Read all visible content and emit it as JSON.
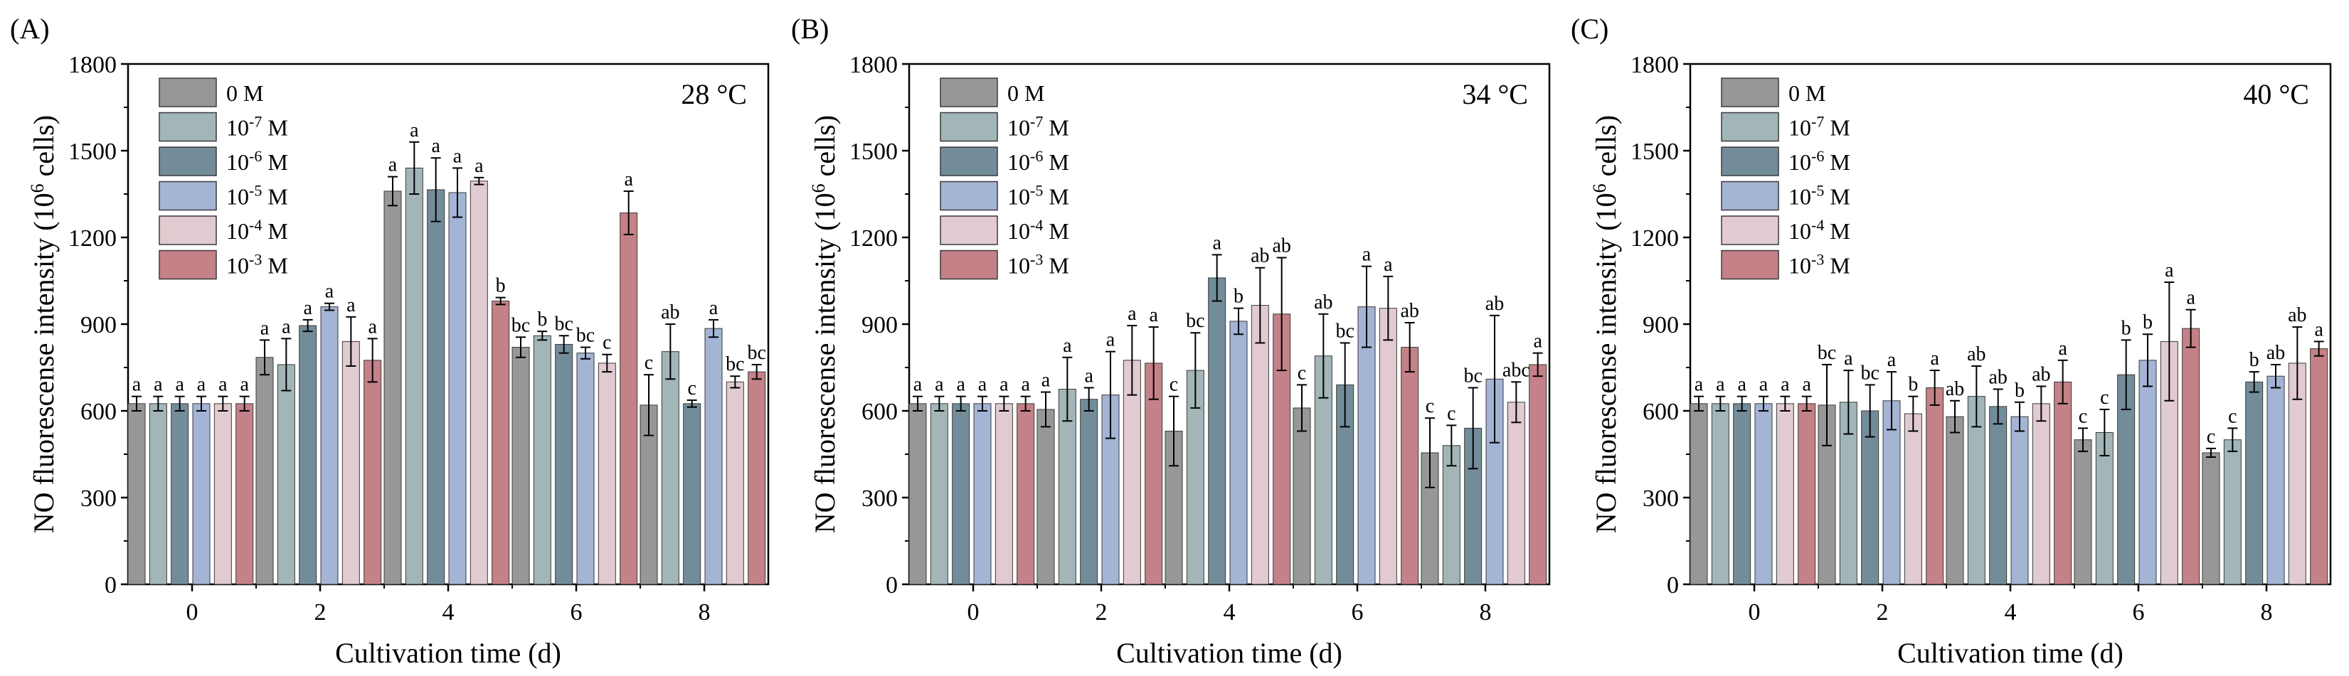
{
  "chart_data": [
    {
      "type": "bar",
      "panel_label": "(A)",
      "annotation": "28 °C",
      "xlabel": "Cultivation time (d)",
      "ylabel_main": "NO fluorescense intensity (10",
      "ylabel_sup": "6",
      "ylabel_tail": " cells)",
      "ylim": [
        0,
        1800
      ],
      "yticks": [
        "0",
        "300",
        "600",
        "900",
        "1200",
        "1500",
        "1800"
      ],
      "categories": [
        "0",
        "2",
        "4",
        "6",
        "8"
      ],
      "legend_position": "top-left",
      "series": [
        {
          "base": "0 M",
          "exp": "",
          "unit": "",
          "color": "#979797",
          "values": [
            625,
            785,
            1360,
            820,
            620
          ],
          "errors": [
            25,
            60,
            50,
            35,
            105
          ],
          "letters": [
            "a",
            "a",
            "a",
            "bc",
            "c"
          ]
        },
        {
          "base": "10",
          "exp": "-7",
          "unit": " M",
          "color": "#a2b6b8",
          "values": [
            625,
            760,
            1440,
            860,
            805
          ],
          "errors": [
            25,
            90,
            90,
            15,
            95
          ],
          "letters": [
            "a",
            "a",
            "a",
            "b",
            "ab"
          ]
        },
        {
          "base": "10",
          "exp": "-6",
          "unit": " M",
          "color": "#738c9a",
          "values": [
            625,
            895,
            1365,
            830,
            625
          ],
          "errors": [
            25,
            20,
            110,
            30,
            12
          ],
          "letters": [
            "a",
            "a",
            "a",
            "bc",
            "c"
          ]
        },
        {
          "base": "10",
          "exp": "-5",
          "unit": " M",
          "color": "#a4b4d5",
          "values": [
            625,
            960,
            1355,
            800,
            885
          ],
          "errors": [
            25,
            12,
            85,
            20,
            30
          ],
          "letters": [
            "a",
            "a",
            "a",
            "bc",
            "a"
          ]
        },
        {
          "base": "10",
          "exp": "-4",
          "unit": " M",
          "color": "#e2cbd0",
          "values": [
            625,
            840,
            1395,
            765,
            700
          ],
          "errors": [
            25,
            85,
            12,
            30,
            20
          ],
          "letters": [
            "a",
            "a",
            "a",
            "c",
            "bc"
          ]
        },
        {
          "base": "10",
          "exp": "-3",
          "unit": " M",
          "color": "#c48187",
          "values": [
            625,
            775,
            980,
            1285,
            735
          ],
          "errors": [
            25,
            75,
            12,
            75,
            25
          ],
          "letters": [
            "a",
            "a",
            "b",
            "a",
            "bc"
          ]
        }
      ]
    },
    {
      "type": "bar",
      "panel_label": "(B)",
      "annotation": "34 °C",
      "xlabel": "Cultivation time (d)",
      "ylabel_main": "NO fluorescense intensity (10",
      "ylabel_sup": "6",
      "ylabel_tail": " cells)",
      "ylim": [
        0,
        1800
      ],
      "yticks": [
        "0",
        "300",
        "600",
        "900",
        "1200",
        "1500",
        "1800"
      ],
      "categories": [
        "0",
        "2",
        "4",
        "6",
        "8"
      ],
      "legend_position": "top-left",
      "series": [
        {
          "base": "0 M",
          "exp": "",
          "unit": "",
          "color": "#979797",
          "values": [
            625,
            605,
            530,
            610,
            455
          ],
          "errors": [
            25,
            60,
            120,
            80,
            120
          ],
          "letters": [
            "a",
            "a",
            "c",
            "c",
            "c"
          ]
        },
        {
          "base": "10",
          "exp": "-7",
          "unit": " M",
          "color": "#a2b6b8",
          "values": [
            625,
            675,
            740,
            790,
            480
          ],
          "errors": [
            25,
            110,
            130,
            145,
            70
          ],
          "letters": [
            "a",
            "a",
            "bc",
            "ab",
            "c"
          ]
        },
        {
          "base": "10",
          "exp": "-6",
          "unit": " M",
          "color": "#738c9a",
          "values": [
            625,
            640,
            1060,
            690,
            540
          ],
          "errors": [
            25,
            40,
            80,
            145,
            140
          ],
          "letters": [
            "a",
            "a",
            "a",
            "bc",
            "bc"
          ]
        },
        {
          "base": "10",
          "exp": "-5",
          "unit": " M",
          "color": "#a4b4d5",
          "values": [
            625,
            655,
            910,
            960,
            710
          ],
          "errors": [
            25,
            150,
            45,
            140,
            220
          ],
          "letters": [
            "a",
            "a",
            "b",
            "a",
            "ab"
          ]
        },
        {
          "base": "10",
          "exp": "-4",
          "unit": " M",
          "color": "#e2cbd0",
          "values": [
            625,
            775,
            965,
            955,
            630
          ],
          "errors": [
            25,
            120,
            130,
            110,
            70
          ],
          "letters": [
            "a",
            "a",
            "ab",
            "a",
            "abc"
          ]
        },
        {
          "base": "10",
          "exp": "-3",
          "unit": " M",
          "color": "#c48187",
          "values": [
            625,
            765,
            935,
            820,
            760
          ],
          "errors": [
            25,
            125,
            195,
            85,
            40
          ],
          "letters": [
            "a",
            "a",
            "ab",
            "ab",
            "a"
          ]
        }
      ]
    },
    {
      "type": "bar",
      "panel_label": "(C)",
      "annotation": "40 °C",
      "xlabel": "Cultivation time (d)",
      "ylabel_main": "NO fluorescense intensity (10",
      "ylabel_sup": "6",
      "ylabel_tail": " cells)",
      "ylim": [
        0,
        1800
      ],
      "yticks": [
        "0",
        "300",
        "600",
        "900",
        "1200",
        "1500",
        "1800"
      ],
      "categories": [
        "0",
        "2",
        "4",
        "6",
        "8"
      ],
      "legend_position": "top-left",
      "series": [
        {
          "base": "0 M",
          "exp": "",
          "unit": "",
          "color": "#979797",
          "values": [
            625,
            620,
            580,
            500,
            455
          ],
          "errors": [
            25,
            140,
            55,
            40,
            15
          ],
          "letters": [
            "a",
            "bc",
            "ab",
            "c",
            "c"
          ]
        },
        {
          "base": "10",
          "exp": "-7",
          "unit": " M",
          "color": "#a2b6b8",
          "values": [
            625,
            630,
            650,
            525,
            500
          ],
          "errors": [
            25,
            110,
            105,
            80,
            40
          ],
          "letters": [
            "a",
            "a",
            "ab",
            "c",
            "c"
          ]
        },
        {
          "base": "10",
          "exp": "-6",
          "unit": " M",
          "color": "#738c9a",
          "values": [
            625,
            600,
            615,
            725,
            700
          ],
          "errors": [
            25,
            90,
            60,
            120,
            35
          ],
          "letters": [
            "a",
            "bc",
            "ab",
            "b",
            "b"
          ]
        },
        {
          "base": "10",
          "exp": "-5",
          "unit": " M",
          "color": "#a4b4d5",
          "values": [
            625,
            635,
            580,
            775,
            720
          ],
          "errors": [
            25,
            100,
            50,
            90,
            40
          ],
          "letters": [
            "a",
            "a",
            "b",
            "b",
            "ab"
          ]
        },
        {
          "base": "10",
          "exp": "-4",
          "unit": " M",
          "color": "#e2cbd0",
          "values": [
            625,
            590,
            625,
            840,
            765
          ],
          "errors": [
            25,
            60,
            60,
            205,
            125
          ],
          "letters": [
            "a",
            "b",
            "ab",
            "a",
            "ab"
          ]
        },
        {
          "base": "10",
          "exp": "-3",
          "unit": " M",
          "color": "#c48187",
          "values": [
            625,
            680,
            700,
            885,
            815
          ],
          "errors": [
            25,
            60,
            75,
            65,
            25
          ],
          "letters": [
            "a",
            "a",
            "a",
            "a",
            "a"
          ]
        }
      ]
    }
  ]
}
